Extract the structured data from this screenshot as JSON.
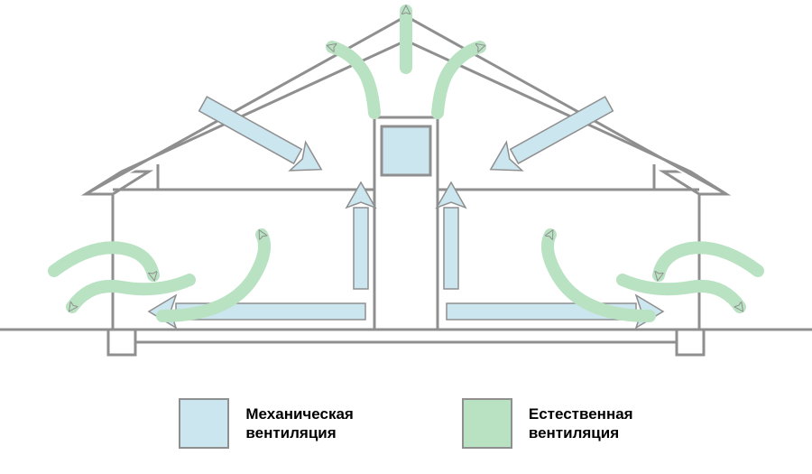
{
  "diagram": {
    "type": "infographic",
    "background_color": "#ffffff",
    "outline_color": "#8f8f8f",
    "outline_width": 3,
    "ground_line_width": 3,
    "mechanical": {
      "label_line1": "Механическая",
      "label_line2": "вентиляция",
      "fill_color": "#cce6f0",
      "stroke_color": "#8f8f8f"
    },
    "natural": {
      "label_line1": "Естественная",
      "label_line2": "вентиляция",
      "fill_color": "#b9e2c3",
      "stroke_color": "#8f8f8f"
    },
    "legend_font_size": 17,
    "legend_font_weight": 700,
    "legend_text_color": "#000000"
  }
}
